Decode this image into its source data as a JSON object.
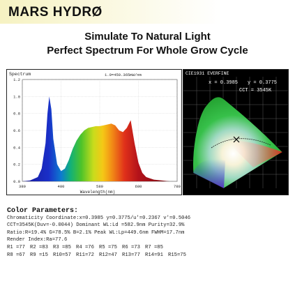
{
  "brand": {
    "logo_text": "MARS HYDRØ"
  },
  "headline": {
    "line1": "Simulate To Natural Light",
    "line2": "Perfect Spectrum For Whole Grow Cycle"
  },
  "spectrum_chart": {
    "panel_label": "Spectrum",
    "scale_note": "1.0=450.365mW/nm",
    "xlabel": "Wavelength(nm)",
    "x_ticks": [
      "380",
      "480",
      "580",
      "680",
      "780"
    ],
    "y_ticks": [
      "1.2",
      "1.0",
      "0.8",
      "0.6",
      "0.4",
      "0.2",
      "0.0"
    ]
  },
  "chart_data": {
    "type": "area",
    "title": "",
    "xlabel": "Wavelength(nm)",
    "ylabel": "",
    "xlim": [
      380,
      780
    ],
    "ylim": [
      0,
      1.2
    ],
    "x": [
      380,
      400,
      420,
      430,
      440,
      445,
      449.6,
      455,
      460,
      470,
      480,
      490,
      500,
      510,
      520,
      530,
      540,
      550,
      560,
      570,
      580,
      590,
      600,
      610,
      620,
      630,
      640,
      650,
      660,
      670,
      680,
      690,
      700,
      720,
      740,
      760,
      780
    ],
    "series": [
      {
        "values": [
          0.0,
          0.01,
          0.05,
          0.15,
          0.45,
          0.8,
          1.0,
          0.85,
          0.5,
          0.2,
          0.12,
          0.15,
          0.25,
          0.38,
          0.48,
          0.55,
          0.6,
          0.63,
          0.64,
          0.65,
          0.65,
          0.66,
          0.67,
          0.68,
          0.66,
          0.6,
          0.58,
          0.63,
          0.72,
          0.45,
          0.22,
          0.1,
          0.05,
          0.02,
          0.01,
          0.0,
          0.0
        ]
      }
    ]
  },
  "cie_chart": {
    "panel_label": "CIE1931 EVERFINE",
    "x_label": "x = 0.3985",
    "y_label": "y = 0.3775",
    "cct_label": "CCT = 3545K"
  },
  "params": {
    "title": "Color Parameters:",
    "lines": [
      "Chromaticity Coordinate:x=0.3985  y=0.3775/u'=0.2367 v'=0.5046",
      "CCT=3545K(Duv=-0.0044) Dominant WL:Ld =582.9nm Purity=32.9%",
      "Ratio:R=19.4% G=78.5% B=2.1%  Peak WL:Lp=449.6nm  FWHM=17.7nm",
      "Render Index:Ra=77.6"
    ],
    "r_row1": [
      "R1 =77",
      "R2 =83",
      "R3 =85",
      "R4 =76",
      "R5 =75",
      "R6 =73",
      "R7 =85",
      ""
    ],
    "r_row2": [
      "R8 =67",
      "R9 =15",
      "R10=57",
      "R11=72",
      "R12=47",
      "R13=77",
      "R14=91",
      "R15=75"
    ]
  },
  "colors": {
    "accent": "#f6f2c2",
    "text": "#111111"
  }
}
